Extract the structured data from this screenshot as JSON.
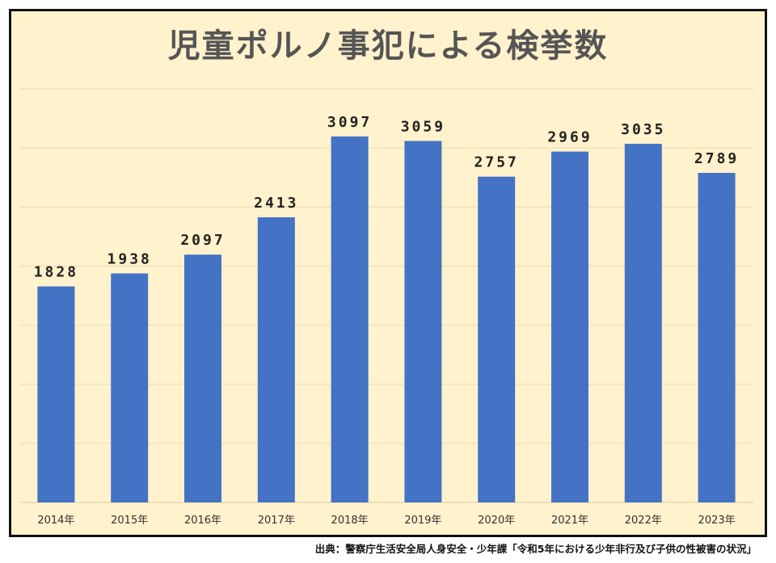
{
  "chart_data": {
    "type": "bar",
    "title": "児童ポルノ事犯による検挙数",
    "categories": [
      "2014年",
      "2015年",
      "2016年",
      "2017年",
      "2018年",
      "2019年",
      "2020年",
      "2021年",
      "2022年",
      "2023年"
    ],
    "values": [
      1828,
      1938,
      2097,
      2413,
      3097,
      3059,
      2757,
      2969,
      3035,
      2789
    ],
    "xlabel": "",
    "ylabel": "",
    "ylim": [
      0,
      3500
    ],
    "grid": true,
    "legend": "none",
    "colors": {
      "bar": "#4472c4",
      "background": "#fff2cc",
      "gridline": "#e8dcb5",
      "axis": "#d9cfa6"
    }
  },
  "source": "出典：警察庁生活安全局人身安全・少年課「令和5年における少年非行及び子供の性被害の状況」"
}
